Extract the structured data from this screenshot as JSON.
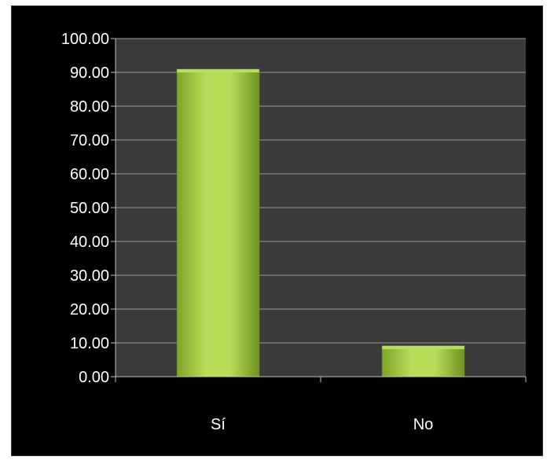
{
  "chart_data": {
    "type": "bar",
    "title": "",
    "xlabel": "",
    "ylabel": "",
    "categories": [
      "Sí",
      "No"
    ],
    "values": [
      90.91,
      9.09
    ],
    "ylim": [
      0,
      100
    ],
    "yticks": [
      "0.00",
      "10.00",
      "20.00",
      "30.00",
      "40.00",
      "50.00",
      "60.00",
      "70.00",
      "80.00",
      "90.00",
      "100.00"
    ],
    "grid": true,
    "legend": "none",
    "colors": {
      "background": "#000000",
      "plot_area": "#3a3a3a",
      "gridline": "#9a9a9a",
      "axis": "#bfbfbf",
      "bar_light": "#b9df5c",
      "bar_dark": "#6e9322",
      "text": "#ffffff"
    }
  }
}
